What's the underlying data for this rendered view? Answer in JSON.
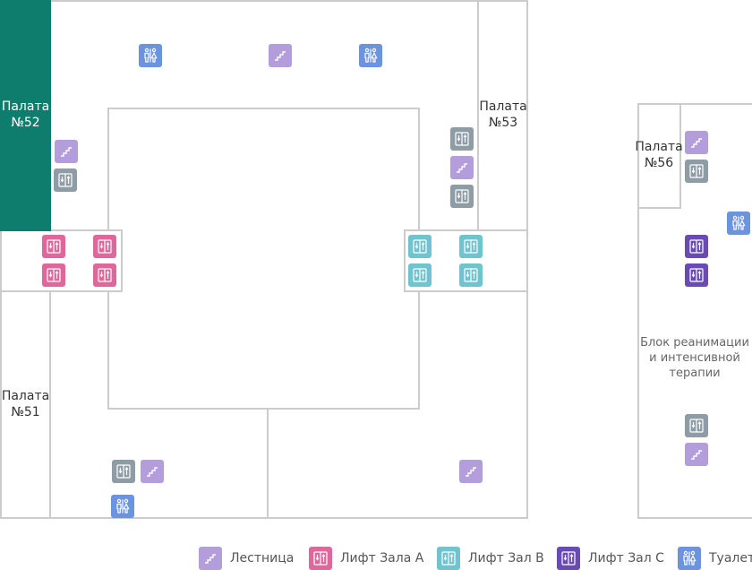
{
  "colors": {
    "selected_room": "#0e7d6d",
    "wall": "#cccccc",
    "stairs": "#b39ddb",
    "elevator_a": "#e0679b",
    "elevator_b": "#6fc4cf",
    "elevator_c": "#6a4bb3",
    "elevator_plain": "#8e9ca5",
    "toilet": "#6b93e0"
  },
  "rooms": {
    "ward_52": {
      "line1": "Палата",
      "line2": "№52",
      "selected": true
    },
    "ward_53": {
      "line1": "Палата",
      "line2": "№53",
      "selected": false
    },
    "ward_51": {
      "line1": "Палата",
      "line2": "№51",
      "selected": false
    },
    "ward_56": {
      "line1": "Палата",
      "line2": "№56",
      "selected": false
    },
    "icu": {
      "line1": "Блок реанимации",
      "line2": "и интенсивной",
      "line3": "терапии"
    }
  },
  "icons": [
    {
      "type": "toilet",
      "icon": "toilet-icon"
    },
    {
      "type": "stairs",
      "icon": "stairs-icon"
    },
    {
      "type": "toilet",
      "icon": "toilet-icon"
    },
    {
      "type": "stairs",
      "icon": "stairs-icon"
    },
    {
      "type": "elevator",
      "icon": "elevator-icon"
    },
    {
      "type": "elevator",
      "icon": "elevator-icon"
    },
    {
      "type": "stairs",
      "icon": "stairs-icon"
    },
    {
      "type": "elevator",
      "icon": "elevator-icon"
    },
    {
      "type": "elevator_a",
      "icon": "elevator-icon"
    },
    {
      "type": "elevator_a",
      "icon": "elevator-icon"
    },
    {
      "type": "elevator_a",
      "icon": "elevator-icon"
    },
    {
      "type": "elevator_a",
      "icon": "elevator-icon"
    },
    {
      "type": "elevator_b",
      "icon": "elevator-icon"
    },
    {
      "type": "elevator_b",
      "icon": "elevator-icon"
    },
    {
      "type": "elevator_b",
      "icon": "elevator-icon"
    },
    {
      "type": "elevator_b",
      "icon": "elevator-icon"
    },
    {
      "type": "elevator",
      "icon": "elevator-icon"
    },
    {
      "type": "stairs",
      "icon": "stairs-icon"
    },
    {
      "type": "toilet",
      "icon": "toilet-icon"
    },
    {
      "type": "stairs",
      "icon": "stairs-icon"
    },
    {
      "type": "stairs",
      "icon": "stairs-icon"
    },
    {
      "type": "elevator",
      "icon": "elevator-icon"
    },
    {
      "type": "toilet",
      "icon": "toilet-icon"
    },
    {
      "type": "elevator_c",
      "icon": "elevator-icon"
    },
    {
      "type": "elevator_c",
      "icon": "elevator-icon"
    },
    {
      "type": "elevator",
      "icon": "elevator-icon"
    },
    {
      "type": "stairs",
      "icon": "stairs-icon"
    }
  ],
  "legend": [
    {
      "type": "stairs",
      "label": "Лестница"
    },
    {
      "type": "elevator_a",
      "label": "Лифт Зала А"
    },
    {
      "type": "elevator_b",
      "label": "Лифт Зал B"
    },
    {
      "type": "elevator_c",
      "label": "Лифт Зал C"
    },
    {
      "type": "toilet",
      "label": "Туалет"
    }
  ]
}
